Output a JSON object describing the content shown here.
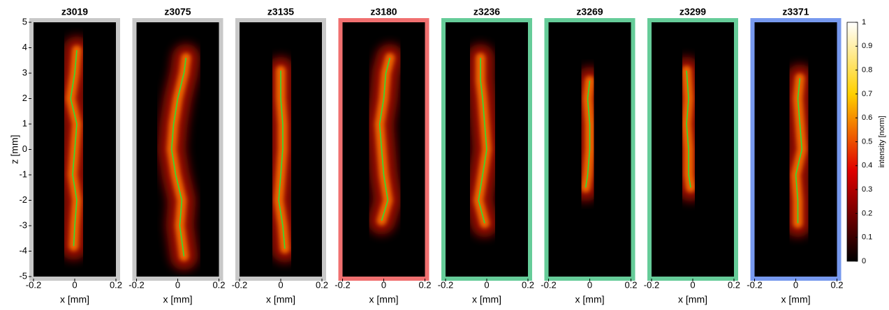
{
  "chart_data": [
    {
      "type": "heatmap",
      "title": "z3019",
      "frame_color": "#c8c8c8",
      "xlabel": "x [mm]",
      "xlim": [
        -0.2,
        0.2
      ],
      "xticks": [
        -0.2,
        0,
        0.2
      ],
      "ylabel": "z [mm]",
      "ylim": [
        -5,
        5
      ],
      "yticks": [
        -5,
        -4,
        -3,
        -2,
        -1,
        0,
        1,
        2,
        3,
        4,
        5
      ],
      "centerline": {
        "color": "#33dd33",
        "z": [
          3.9,
          3,
          2,
          1,
          0,
          -1,
          -2,
          -3,
          -3.8
        ],
        "x": [
          0.01,
          0,
          -0.02,
          0.01,
          0,
          -0.01,
          0.01,
          0,
          -0.005
        ]
      }
    },
    {
      "type": "heatmap",
      "title": "z3075",
      "frame_color": "#c8c8c8",
      "xlabel": "x [mm]",
      "xlim": [
        -0.2,
        0.2
      ],
      "xticks": [
        -0.2,
        0,
        0.2
      ],
      "ylim": [
        -5,
        5
      ],
      "centerline": {
        "color": "#33dd33",
        "z": [
          3.6,
          3,
          2,
          1,
          0,
          -1,
          -2,
          -3,
          -4.2
        ],
        "x": [
          0.04,
          0.03,
          0,
          -0.02,
          -0.03,
          -0.01,
          0.02,
          0.01,
          0.03
        ]
      }
    },
    {
      "type": "heatmap",
      "title": "z3135",
      "frame_color": "#c8c8c8",
      "xlabel": "x [mm]",
      "xlim": [
        -0.2,
        0.2
      ],
      "xticks": [
        -0.2,
        0,
        0.2
      ],
      "ylim": [
        -5,
        5
      ],
      "centerline": {
        "color": "#33dd33",
        "z": [
          3.1,
          2,
          1,
          0,
          -1,
          -2,
          -3,
          -3.9
        ],
        "x": [
          0,
          0,
          0.01,
          0.01,
          0,
          -0.01,
          0.01,
          0.02
        ]
      }
    },
    {
      "type": "heatmap",
      "title": "z3180",
      "frame_color": "#f07070",
      "xlabel": "x [mm]",
      "xlim": [
        -0.2,
        0.2
      ],
      "xticks": [
        -0.2,
        0,
        0.2
      ],
      "ylim": [
        -5,
        5
      ],
      "centerline": {
        "color": "#33dd33",
        "z": [
          3.6,
          3,
          2,
          1,
          0,
          -1,
          -2,
          -2.8
        ],
        "x": [
          0.03,
          0.01,
          0,
          -0.02,
          -0.01,
          0,
          0.02,
          -0.01
        ]
      }
    },
    {
      "type": "heatmap",
      "title": "z3236",
      "frame_color": "#66cc99",
      "xlabel": "x [mm]",
      "xlim": [
        -0.2,
        0.2
      ],
      "xticks": [
        -0.2,
        0,
        0.2
      ],
      "ylim": [
        -5,
        5
      ],
      "centerline": {
        "color": "#33dd33",
        "z": [
          3.6,
          2.7,
          2,
          1,
          0,
          -1,
          -2,
          -2.9
        ],
        "x": [
          -0.03,
          -0.03,
          -0.02,
          -0.01,
          0,
          -0.02,
          -0.04,
          -0.01
        ]
      }
    },
    {
      "type": "heatmap",
      "title": "z3269",
      "frame_color": "#66cc99",
      "xlabel": "x [mm]",
      "xlim": [
        -0.2,
        0.2
      ],
      "xticks": [
        -0.2,
        0,
        0.2
      ],
      "ylim": [
        -5,
        5
      ],
      "centerline": {
        "color": "#33dd33",
        "z": [
          2.7,
          2,
          1,
          0,
          -1,
          -1.5
        ],
        "x": [
          0,
          -0.01,
          0,
          0,
          -0.01,
          -0.02
        ]
      }
    },
    {
      "type": "heatmap",
      "title": "z3299",
      "frame_color": "#66cc99",
      "xlabel": "x [mm]",
      "xlim": [
        -0.2,
        0.2
      ],
      "xticks": [
        -0.2,
        0,
        0.2
      ],
      "ylim": [
        -5,
        5
      ],
      "centerline": {
        "color": "#33dd33",
        "z": [
          3.1,
          2,
          1,
          0,
          -1,
          -1.5
        ],
        "x": [
          -0.03,
          -0.02,
          -0.03,
          -0.02,
          -0.02,
          -0.01
        ]
      }
    },
    {
      "type": "heatmap",
      "title": "z3371",
      "frame_color": "#7799ee",
      "xlabel": "x [mm]",
      "xlim": [
        -0.2,
        0.2
      ],
      "xticks": [
        -0.2,
        0,
        0.2
      ],
      "ylim": [
        -5,
        5
      ],
      "centerline": {
        "color": "#33dd33",
        "z": [
          2.8,
          2,
          1,
          0,
          -1,
          -2,
          -2.9
        ],
        "x": [
          0.02,
          0.01,
          0.02,
          0.03,
          0,
          0.01,
          0.01
        ]
      }
    },
    {
      "type": "colorbar",
      "label": "intensity [norm]",
      "lim": [
        0,
        1
      ],
      "ticks": [
        0,
        0.1,
        0.2,
        0.3,
        0.4,
        0.5,
        0.6,
        0.7,
        0.8,
        0.9,
        1
      ]
    }
  ]
}
